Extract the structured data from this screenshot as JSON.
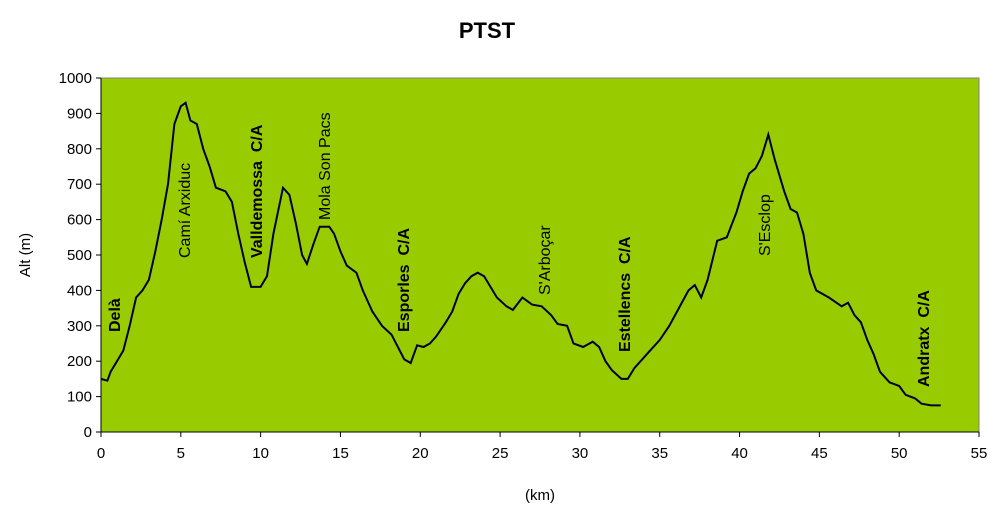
{
  "chart_data": {
    "type": "line",
    "title": "PTST",
    "x_label": "(km)",
    "y_label": "Alt (m)",
    "xlim": [
      0,
      55
    ],
    "xticks": [
      0,
      5,
      10,
      15,
      20,
      25,
      30,
      35,
      40,
      45,
      50,
      55
    ],
    "ylim": [
      0,
      1000
    ],
    "yticks": [
      0,
      100,
      200,
      300,
      400,
      500,
      600,
      700,
      800,
      900,
      1000
    ],
    "background": "#99cc00",
    "grid": false,
    "series": [
      {
        "color": "#000033",
        "x": [
          0,
          0.4,
          0.6,
          1.0,
          1.4,
          1.8,
          2.2,
          2.6,
          3.0,
          3.4,
          3.8,
          4.2,
          4.6,
          5.0,
          5.3,
          5.6,
          6.0,
          6.4,
          6.8,
          7.2,
          7.8,
          8.2,
          8.6,
          9.0,
          9.4,
          10.0,
          10.4,
          10.8,
          11.4,
          11.8,
          12.2,
          12.6,
          12.9,
          13.3,
          13.7,
          14.3,
          14.6,
          15.0,
          15.4,
          16.0,
          16.4,
          17.0,
          17.6,
          18.2,
          18.6,
          19.0,
          19.4,
          19.8,
          20.2,
          20.6,
          21.0,
          21.6,
          22.0,
          22.4,
          22.8,
          23.2,
          23.6,
          24.0,
          24.4,
          24.8,
          25.4,
          25.8,
          26.4,
          27.0,
          27.6,
          28.2,
          28.6,
          29.2,
          29.6,
          30.2,
          30.8,
          31.2,
          31.6,
          32.0,
          32.6,
          33.0,
          33.4,
          33.8,
          34.4,
          35.0,
          35.6,
          36.2,
          36.8,
          37.2,
          37.6,
          38.0,
          38.6,
          39.2,
          39.8,
          40.2,
          40.6,
          41.0,
          41.4,
          41.8,
          42.2,
          42.8,
          43.2,
          43.6,
          44.0,
          44.4,
          44.8,
          45.6,
          46.4,
          46.8,
          47.2,
          47.6,
          48.0,
          48.4,
          48.8,
          49.4,
          50.0,
          50.4,
          51.0,
          51.4,
          52.0,
          52.6
        ],
        "values": [
          150,
          145,
          170,
          200,
          230,
          300,
          380,
          400,
          430,
          510,
          600,
          700,
          870,
          920,
          930,
          880,
          870,
          800,
          750,
          690,
          680,
          650,
          560,
          480,
          410,
          410,
          440,
          560,
          690,
          670,
          590,
          500,
          475,
          530,
          580,
          580,
          560,
          510,
          470,
          450,
          400,
          340,
          300,
          275,
          240,
          205,
          195,
          245,
          240,
          250,
          270,
          310,
          340,
          390,
          420,
          440,
          450,
          440,
          410,
          380,
          355,
          345,
          380,
          360,
          355,
          330,
          305,
          300,
          250,
          240,
          255,
          240,
          200,
          175,
          150,
          150,
          180,
          200,
          230,
          260,
          300,
          350,
          400,
          415,
          380,
          430,
          540,
          550,
          620,
          680,
          730,
          745,
          780,
          840,
          770,
          680,
          630,
          620,
          560,
          450,
          400,
          380,
          355,
          365,
          330,
          310,
          260,
          220,
          170,
          140,
          130,
          105,
          95,
          80,
          75,
          75
        ]
      }
    ],
    "annotations": [
      {
        "text": "Delà",
        "bold": true
      },
      {
        "text": "Camí Arxiduc",
        "bold": false
      },
      {
        "text": "Valldemossa  C/A",
        "bold": true
      },
      {
        "text": "Mola Son Pacs",
        "bold": false
      },
      {
        "text": "Esporles  C/A",
        "bold": true
      },
      {
        "text": "S'Arboçar",
        "bold": false
      },
      {
        "text": "Estellencs  C/A",
        "bold": true
      },
      {
        "text": "S'Esclop",
        "bold": false
      },
      {
        "text": "Andratx  C/A",
        "bold": true
      }
    ]
  }
}
